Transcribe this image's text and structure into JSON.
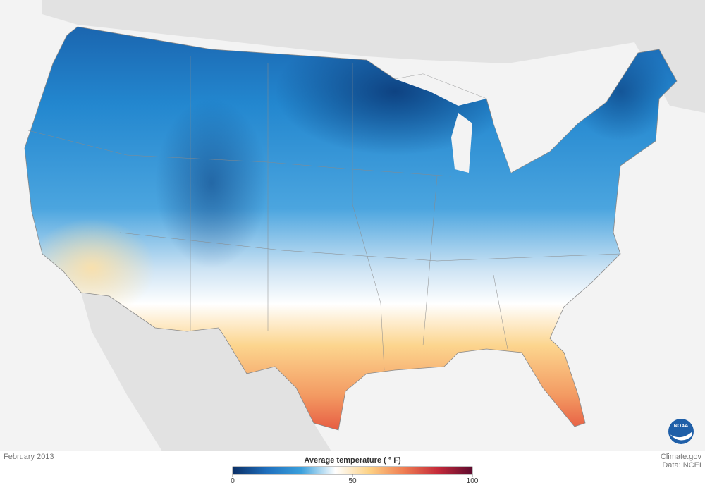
{
  "map": {
    "date": "February 2013",
    "legend": {
      "title": "Average temperature ( ° F)",
      "range": [
        0,
        100
      ],
      "ticks": [
        0,
        50,
        100
      ],
      "colors": [
        "#0b2f66",
        "#1f6fbd",
        "#3aa0dc",
        "#ffffff",
        "#fdd184",
        "#ef7d52",
        "#c42a3a",
        "#5e0a2e"
      ]
    }
  },
  "credit": {
    "source": "Climate.gov",
    "data": "Data: NCEI"
  },
  "logo": "NOAA"
}
